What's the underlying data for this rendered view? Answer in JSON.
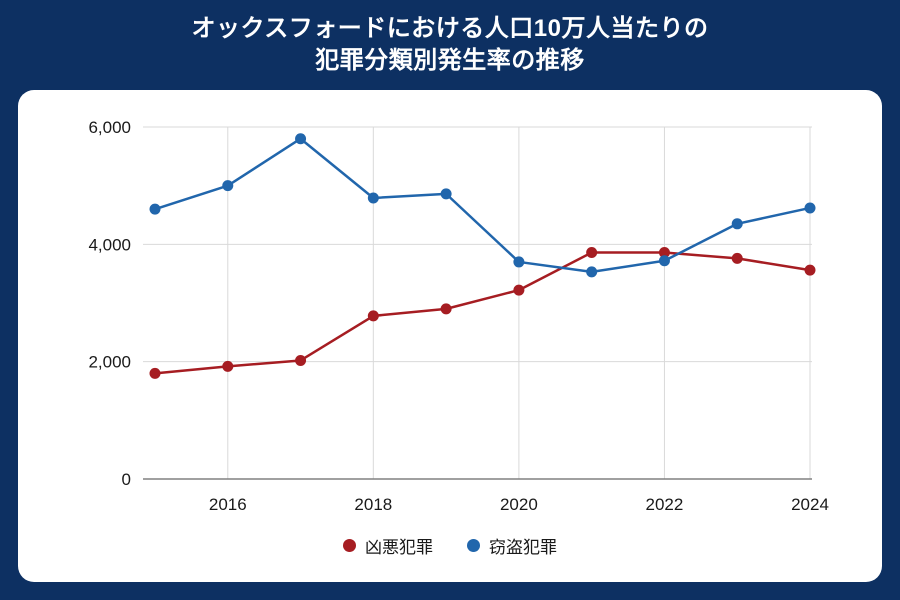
{
  "title": {
    "line1": "オックスフォードにおける人口10万人当たりの",
    "line2": "犯罪分類別発生率の推移"
  },
  "colors": {
    "page_background": "#0d3062",
    "card_background": "#ffffff",
    "title_text": "#ffffff",
    "axis_text": "#1a1a1a",
    "gridline": "#d9d9d9",
    "axis_line": "#808080",
    "series_violent_red": "#a61d22",
    "series_theft_blue": "#2166ac"
  },
  "chart_data": {
    "type": "line",
    "title": "オックスフォードにおける人口10万人当たりの犯罪分類別発生率の推移",
    "x": [
      2015,
      2016,
      2017,
      2018,
      2019,
      2020,
      2021,
      2022,
      2023,
      2024
    ],
    "series": [
      {
        "name": "凶悪犯罪",
        "color": "#a61d22",
        "values": [
          1800,
          1920,
          2020,
          2780,
          2900,
          3220,
          3860,
          3860,
          3760,
          3560
        ]
      },
      {
        "name": "窃盗犯罪",
        "color": "#2166ac",
        "values": [
          4600,
          5000,
          5800,
          4790,
          4860,
          3700,
          3530,
          3720,
          4350,
          4620
        ]
      }
    ],
    "ylim": [
      0,
      6000
    ],
    "yticks": [
      0,
      2000,
      4000,
      6000
    ],
    "ytick_labels": [
      "0",
      "2,000",
      "4,000",
      "6,000"
    ],
    "xticks": [
      2016,
      2018,
      2020,
      2022,
      2024
    ],
    "xtick_labels": [
      "2016",
      "2018",
      "2020",
      "2022",
      "2024"
    ],
    "grid": true,
    "legend_position": "bottom"
  }
}
